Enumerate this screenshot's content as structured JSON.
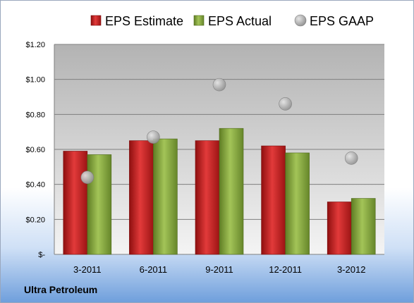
{
  "company": "Ultra Petroleum",
  "chart_data": {
    "type": "bar",
    "categories": [
      "3-2011",
      "6-2011",
      "9-2011",
      "12-2011",
      "3-2012"
    ],
    "series": [
      {
        "name": "EPS Estimate",
        "kind": "bar",
        "color": "#cc1f1f",
        "values": [
          0.59,
          0.65,
          0.65,
          0.62,
          0.3
        ]
      },
      {
        "name": "EPS Actual",
        "kind": "bar",
        "color": "#8aad3c",
        "values": [
          0.57,
          0.66,
          0.72,
          0.58,
          0.32
        ]
      },
      {
        "name": "EPS GAAP",
        "kind": "scatter",
        "color": "#a9a9a9",
        "values": [
          0.44,
          0.67,
          0.97,
          0.86,
          0.55
        ]
      }
    ],
    "ylim": [
      0,
      1.2
    ],
    "yticks": [
      0,
      0.2,
      0.4,
      0.6,
      0.8,
      1.0,
      1.2
    ],
    "ytick_labels": [
      "$-",
      "$0.20",
      "$0.40",
      "$0.60",
      "$0.80",
      "$1.00",
      "$1.20"
    ],
    "legend": "top",
    "grid": true
  }
}
